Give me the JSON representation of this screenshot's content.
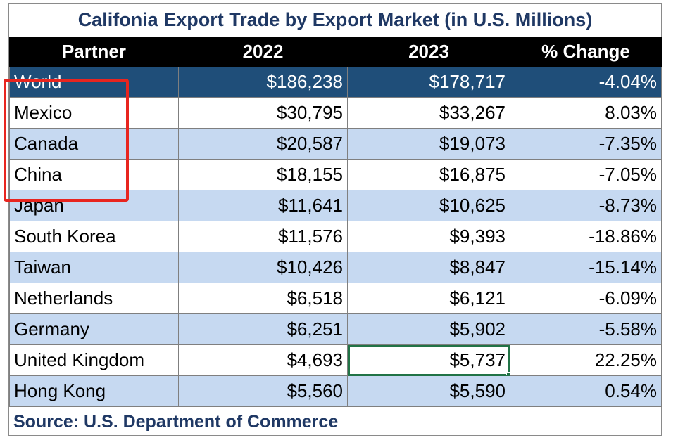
{
  "title": "Califonia Export Trade by Export Market (in U.S. Millions)",
  "columns": [
    "Partner",
    "2022",
    "2023",
    "% Change"
  ],
  "rows": [
    {
      "partner": "World",
      "y2022": "$186,238",
      "y2023": "$178,717",
      "change": "-4.04%"
    },
    {
      "partner": "Mexico",
      "y2022": "$30,795",
      "y2023": "$33,267",
      "change": "8.03%"
    },
    {
      "partner": "Canada",
      "y2022": "$20,587",
      "y2023": "$19,073",
      "change": "-7.35%"
    },
    {
      "partner": "China",
      "y2022": "$18,155",
      "y2023": "$16,875",
      "change": "-7.05%"
    },
    {
      "partner": "Japan",
      "y2022": "$11,641",
      "y2023": "$10,625",
      "change": "-8.73%"
    },
    {
      "partner": "South Korea",
      "y2022": "$11,576",
      "y2023": "$9,393",
      "change": "-18.86%"
    },
    {
      "partner": "Taiwan",
      "y2022": "$10,426",
      "y2023": "$8,847",
      "change": "-15.14%"
    },
    {
      "partner": "Netherlands",
      "y2022": "$6,518",
      "y2023": "$6,121",
      "change": "-6.09%"
    },
    {
      "partner": "Germany",
      "y2022": "$6,251",
      "y2023": "$5,902",
      "change": "-5.58%"
    },
    {
      "partner": "United Kingdom",
      "y2022": "$4,693",
      "y2023": "$5,737",
      "change": "22.25%"
    },
    {
      "partner": "Hong Kong",
      "y2022": "$5,560",
      "y2023": "$5,590",
      "change": "0.54%"
    }
  ],
  "source": "Source: U.S. Department of Commerce",
  "colors": {
    "title": "#1f3864",
    "header_bg": "#000000",
    "world_row_bg": "#1f4e79",
    "alt_row_bg": "#c6d9f1",
    "selection": "#217346",
    "annotation_box": "#e8251f"
  }
}
